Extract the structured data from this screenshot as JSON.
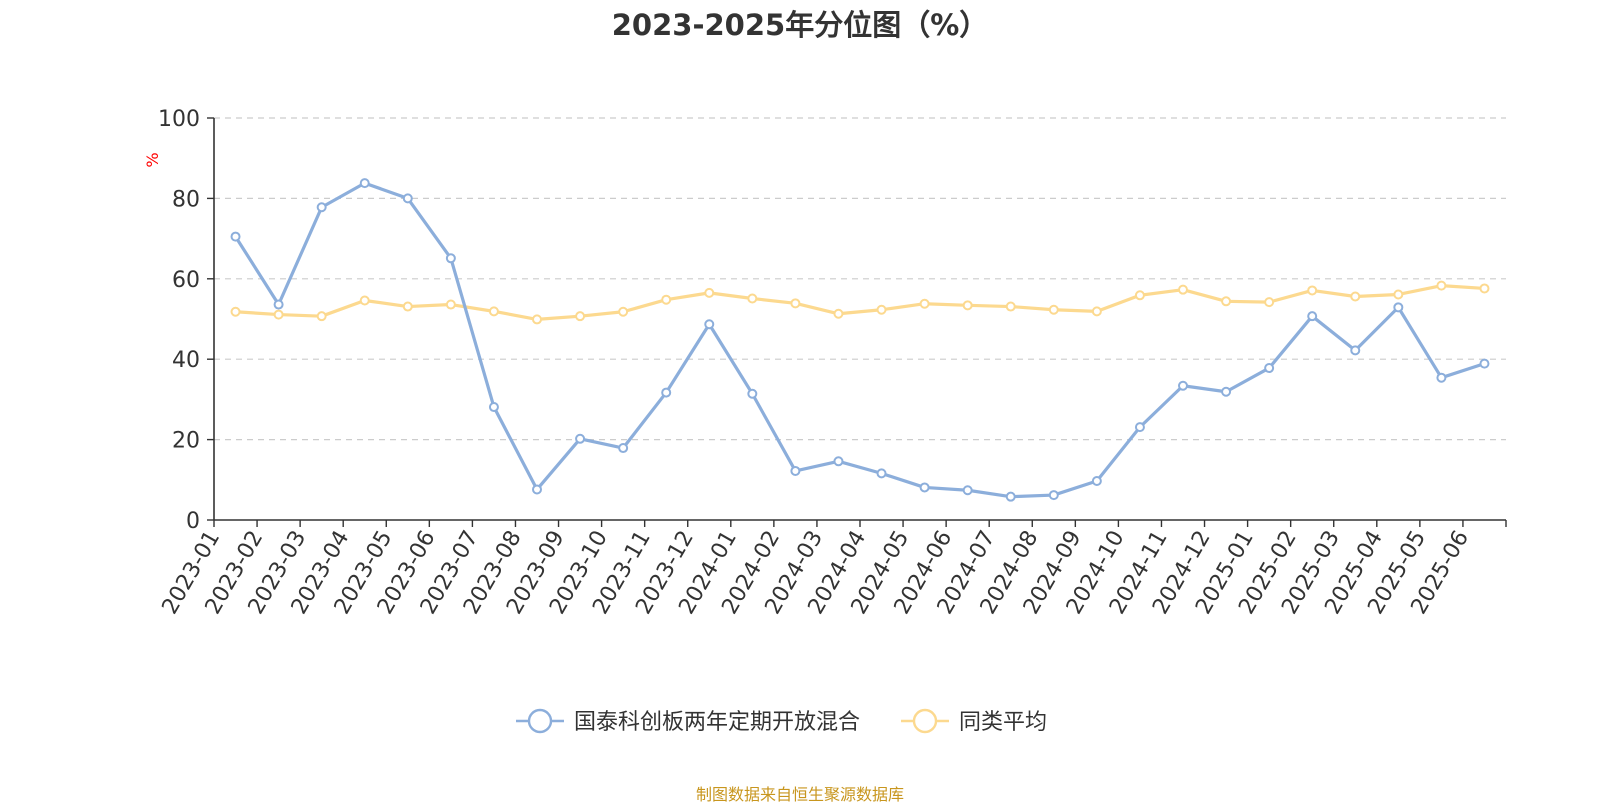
{
  "title": "2023-2025年分位图（%）",
  "unit_label": "%",
  "source_note": "制图数据来自恒生聚源数据库",
  "colors": {
    "fund": "#8caedb",
    "average": "#fcd98f",
    "axis": "#333333",
    "grid": "#cccccc",
    "unit": "#ff0000",
    "source": "#c8961e"
  },
  "chart_data": {
    "type": "line",
    "title": "2023-2025年分位图（%）",
    "ylabel": "%",
    "ylim": [
      0,
      100
    ],
    "yticks": [
      0,
      20,
      40,
      60,
      80,
      100
    ],
    "grid": "horizontal-dashed",
    "legend": "bottom-center",
    "categories": [
      "2023-01",
      "2023-02",
      "2023-03",
      "2023-04",
      "2023-05",
      "2023-06",
      "2023-07",
      "2023-08",
      "2023-09",
      "2023-10",
      "2023-11",
      "2023-12",
      "2024-01",
      "2024-02",
      "2024-03",
      "2024-04",
      "2024-05",
      "2024-06",
      "2024-07",
      "2024-08",
      "2024-09",
      "2024-10",
      "2024-11",
      "2024-12",
      "2025-01",
      "2025-02",
      "2025-03",
      "2025-04",
      "2025-05",
      "2025-06"
    ],
    "series": [
      {
        "name": "国泰科创板两年定期开放混合",
        "color": "#8caedb",
        "values": [
          70.5,
          53.6,
          77.8,
          83.8,
          80.0,
          65.1,
          28.1,
          7.6,
          20.2,
          17.9,
          31.7,
          48.7,
          31.4,
          12.2,
          14.6,
          11.6,
          8.1,
          7.4,
          5.8,
          6.2,
          9.7,
          23.1,
          33.4,
          31.9,
          37.8,
          50.7,
          42.2,
          52.9,
          35.4,
          38.9
        ]
      },
      {
        "name": "同类平均",
        "color": "#fcd98f",
        "values": [
          51.8,
          51.1,
          50.7,
          54.6,
          53.1,
          53.6,
          51.9,
          49.9,
          50.7,
          51.8,
          54.8,
          56.5,
          55.1,
          53.9,
          51.3,
          52.3,
          53.8,
          53.4,
          53.1,
          52.3,
          51.9,
          55.9,
          57.3,
          54.4,
          54.2,
          57.1,
          55.6,
          56.1,
          58.3,
          57.6
        ]
      }
    ]
  }
}
